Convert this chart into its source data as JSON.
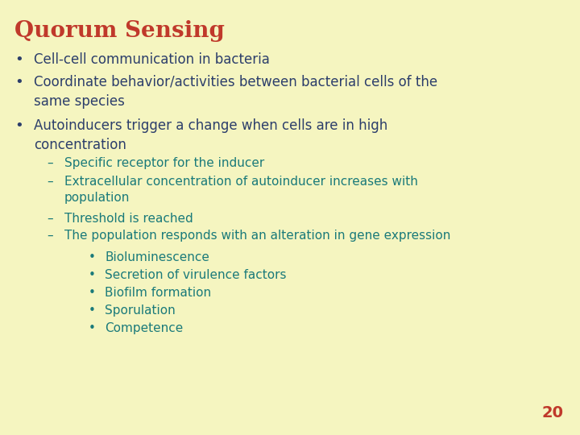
{
  "title": "Quorum Sensing",
  "title_color": "#C0392B",
  "background_color": "#F5F5C0",
  "body_color": "#2C3E6B",
  "sub_color": "#1A7A7A",
  "page_number": "20",
  "page_number_color": "#C0392B",
  "bullet1": "Cell-cell communication in bacteria",
  "bullet2_line1": "Coordinate behavior/activities between bacterial cells of the",
  "bullet2_line2": "same species",
  "bullet3_line1": "Autoinducers trigger a change when cells are in high",
  "bullet3_line2": "concentration",
  "sub1": "Specific receptor for the inducer",
  "sub2_line1": "Extracellular concentration of autoinducer increases with",
  "sub2_line2": "population",
  "sub3": "Threshold is reached",
  "sub4": "The population responds with an alteration in gene expression",
  "sub_sub1": "Bioluminescence",
  "sub_sub2": "Secretion of virulence factors",
  "sub_sub3": "Biofilm formation",
  "sub_sub4": "Sporulation",
  "sub_sub5": "Competence",
  "title_fontsize": 20,
  "body_fontsize": 12,
  "sub_fontsize": 11,
  "sub_sub_fontsize": 11,
  "page_fontsize": 14
}
